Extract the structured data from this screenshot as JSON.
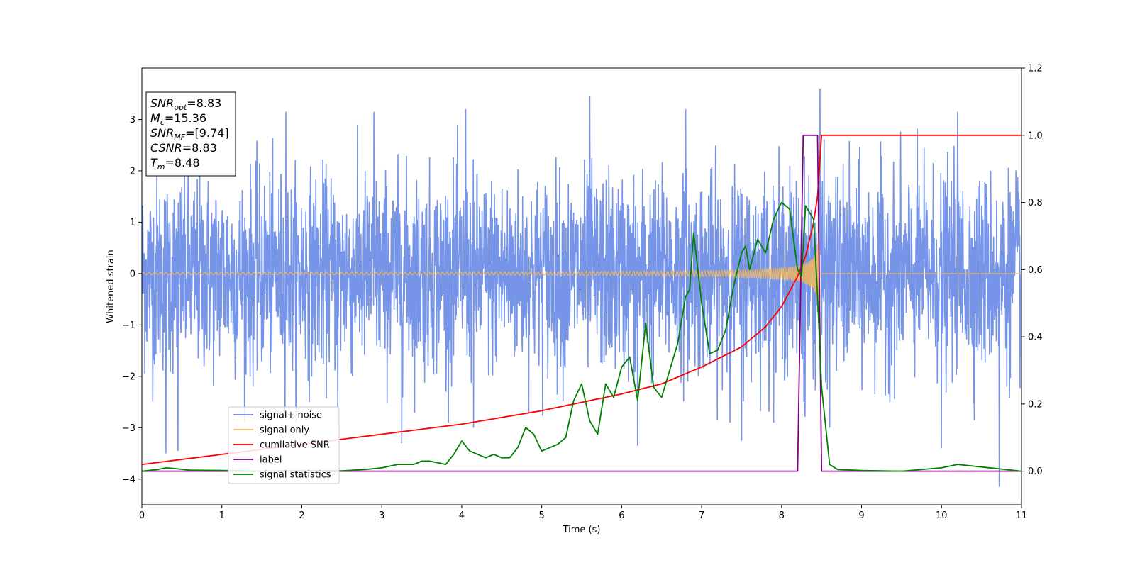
{
  "chart_data": {
    "type": "line",
    "xlabel": "Time (s)",
    "ylabel": "Whitened strain",
    "xlim": [
      0,
      11
    ],
    "ylim_left": [
      -4.5,
      4.0
    ],
    "ylim_right": [
      -0.1,
      1.2
    ],
    "x_ticks": [
      0,
      1,
      2,
      3,
      4,
      5,
      6,
      7,
      8,
      9,
      10,
      11
    ],
    "y_ticks_left": [
      -4,
      -3,
      -2,
      -1,
      0,
      1,
      2,
      3
    ],
    "y_ticks_right": [
      0.0,
      0.2,
      0.4,
      0.6,
      0.8,
      1.0,
      1.2
    ],
    "grid": false,
    "legend_position": "lower-left",
    "annotation_lines": [
      {
        "base": "SNR",
        "sub": "opt",
        "value": "=8.83"
      },
      {
        "base": "M",
        "sub": "c",
        "value": "=15.36"
      },
      {
        "base": "SNR",
        "sub": "MF",
        "value": "=[9.74]"
      },
      {
        "base": "CSNR",
        "sub": "",
        "value": "=8.83"
      },
      {
        "base": "T",
        "sub": "m",
        "value": "=8.48"
      }
    ],
    "series": [
      {
        "name": "signal+ noise",
        "color": "#6a8be6",
        "axis": "left",
        "kind": "noise",
        "typical_range": [
          -1.9,
          1.9
        ],
        "x_range": [
          0,
          11
        ],
        "extreme_values": [
          {
            "x": 0.3,
            "y": -3.5
          },
          {
            "x": 0.45,
            "y": -3.45
          },
          {
            "x": 1.8,
            "y": 3.15
          },
          {
            "x": 2.45,
            "y": -2.95
          },
          {
            "x": 2.9,
            "y": 3.15
          },
          {
            "x": 3.25,
            "y": -3.3
          },
          {
            "x": 4.05,
            "y": 3.2
          },
          {
            "x": 4.15,
            "y": -3.0
          },
          {
            "x": 5.6,
            "y": 3.45
          },
          {
            "x": 6.2,
            "y": -3.35
          },
          {
            "x": 6.8,
            "y": 3.2
          },
          {
            "x": 7.5,
            "y": -3.25
          },
          {
            "x": 8.28,
            "y": -2.5
          },
          {
            "x": 8.48,
            "y": 3.6
          },
          {
            "x": 8.6,
            "y": -3.0
          },
          {
            "x": 10.0,
            "y": -3.4
          },
          {
            "x": 10.72,
            "y": -4.15
          },
          {
            "x": 10.2,
            "y": 3.15
          }
        ]
      },
      {
        "name": "signal only",
        "color": "#f5b85a",
        "axis": "left",
        "kind": "chirp",
        "x_range": [
          0,
          8.48
        ],
        "amplitude_start": 0.02,
        "amplitude_end": 0.9,
        "after_merger": 0
      },
      {
        "name": "cumilative SNR",
        "color": "#ff0000",
        "axis": "right",
        "x": [
          0,
          1,
          2,
          3,
          4,
          5,
          6,
          6.5,
          7,
          7.5,
          7.8,
          8.0,
          8.2,
          8.3,
          8.4,
          8.45,
          8.5,
          11
        ],
        "values": [
          0.02,
          0.05,
          0.08,
          0.11,
          0.14,
          0.18,
          0.23,
          0.26,
          0.31,
          0.37,
          0.43,
          0.49,
          0.58,
          0.64,
          0.74,
          0.82,
          1.0,
          1.0
        ]
      },
      {
        "name": "label",
        "color": "#800080",
        "axis": "right",
        "x": [
          0,
          8.2,
          8.27,
          8.45,
          8.5,
          11
        ],
        "values": [
          0.0,
          0.0,
          1.0,
          1.0,
          0.0,
          0.0
        ]
      },
      {
        "name": "signal statistics",
        "color": "#008000",
        "axis": "right",
        "x": [
          0,
          0.2,
          0.3,
          0.4,
          0.6,
          1.0,
          1.5,
          2.0,
          2.5,
          2.8,
          3.0,
          3.2,
          3.4,
          3.5,
          3.6,
          3.8,
          3.9,
          4.0,
          4.1,
          4.2,
          4.3,
          4.4,
          4.5,
          4.6,
          4.7,
          4.8,
          4.9,
          5.0,
          5.1,
          5.2,
          5.3,
          5.4,
          5.5,
          5.6,
          5.7,
          5.8,
          5.9,
          6.0,
          6.1,
          6.2,
          6.3,
          6.4,
          6.5,
          6.6,
          6.7,
          6.8,
          6.85,
          6.9,
          7.0,
          7.1,
          7.2,
          7.3,
          7.4,
          7.5,
          7.55,
          7.6,
          7.7,
          7.8,
          7.9,
          8.0,
          8.1,
          8.2,
          8.25,
          8.3,
          8.4,
          8.45,
          8.5,
          8.6,
          8.7,
          9.0,
          9.5,
          10.0,
          10.2,
          11.0
        ],
        "values": [
          0.0,
          0.005,
          0.01,
          0.008,
          0.003,
          0.002,
          0.0,
          0.002,
          0.001,
          0.005,
          0.01,
          0.02,
          0.02,
          0.03,
          0.03,
          0.02,
          0.05,
          0.09,
          0.06,
          0.05,
          0.04,
          0.05,
          0.04,
          0.04,
          0.07,
          0.13,
          0.11,
          0.06,
          0.07,
          0.08,
          0.1,
          0.21,
          0.26,
          0.15,
          0.11,
          0.26,
          0.22,
          0.31,
          0.34,
          0.21,
          0.44,
          0.25,
          0.22,
          0.3,
          0.38,
          0.52,
          0.54,
          0.71,
          0.5,
          0.35,
          0.36,
          0.42,
          0.55,
          0.65,
          0.67,
          0.6,
          0.69,
          0.65,
          0.75,
          0.8,
          0.78,
          0.6,
          0.58,
          0.79,
          0.75,
          0.52,
          0.25,
          0.02,
          0.005,
          0.002,
          0.0,
          0.01,
          0.02,
          0.0
        ]
      }
    ]
  }
}
